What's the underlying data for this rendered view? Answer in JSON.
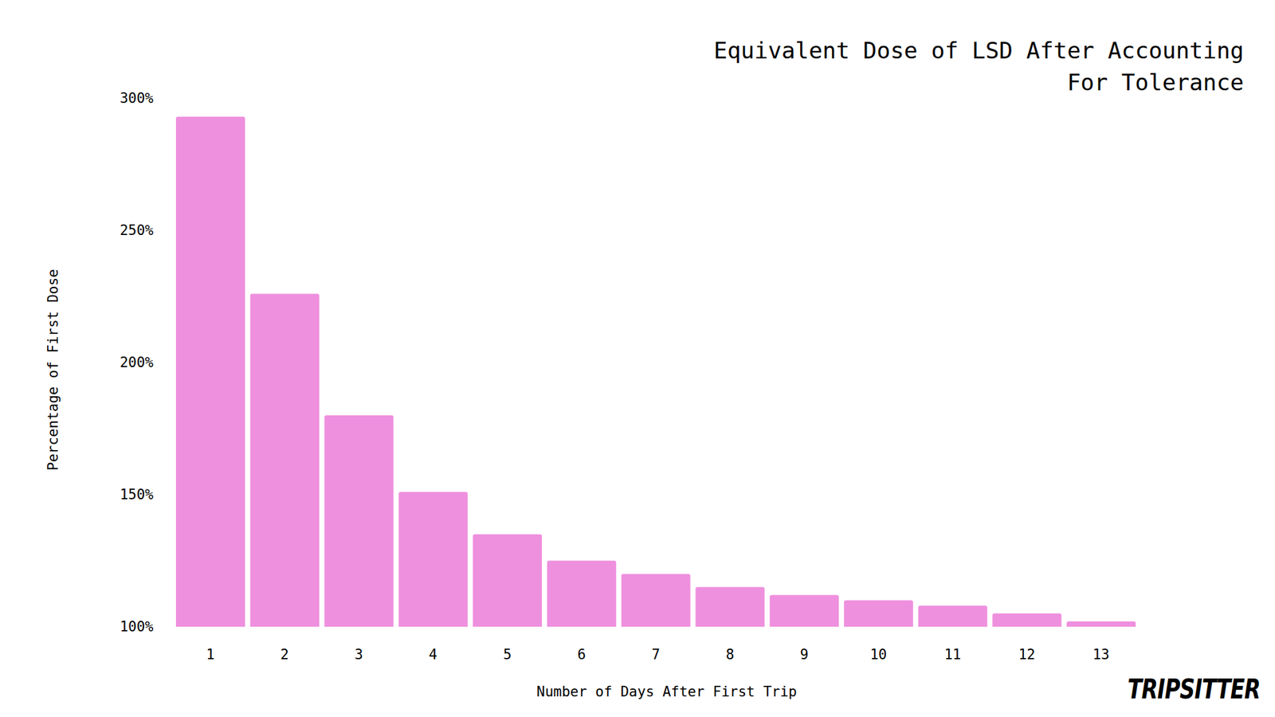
{
  "chart_data": {
    "type": "bar",
    "title": "Equivalent Dose of LSD After Accounting For Tolerance",
    "x_label": "Number of Days After First Trip",
    "y_label": "Percentage of First Dose",
    "categories": [
      "1",
      "2",
      "3",
      "4",
      "5",
      "6",
      "7",
      "8",
      "9",
      "10",
      "11",
      "12",
      "13"
    ],
    "values": [
      293,
      226,
      180,
      151,
      135,
      125,
      120,
      115,
      112,
      110,
      108,
      105,
      102
    ],
    "color": "#ef90df",
    "ylim": [
      100,
      300
    ],
    "yticks": [
      {
        "value": 100,
        "label": "100%"
      },
      {
        "value": 150,
        "label": "150%"
      },
      {
        "value": 200,
        "label": "200%"
      },
      {
        "value": 250,
        "label": "250%"
      },
      {
        "value": 300,
        "label": "300%"
      }
    ],
    "grid": false,
    "annotations": [
      "TRIPSITTER"
    ]
  }
}
